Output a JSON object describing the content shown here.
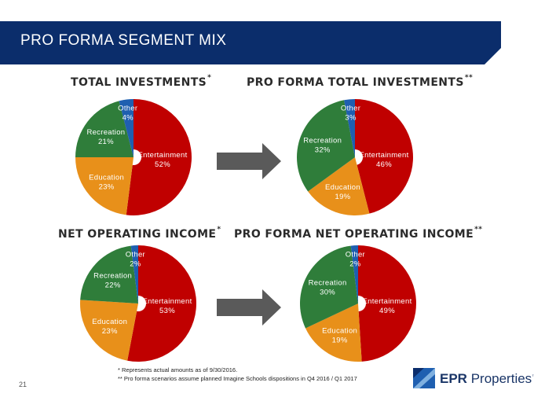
{
  "slide": {
    "title": "PRO FORMA SEGMENT MIX",
    "page_number": "21",
    "footnotes": [
      "*  Represents actual amounts as of 9/30/2016.",
      "** Pro forma scenarios assume planned Imagine Schools dispositions in Q4 2016 / Q1 2017"
    ],
    "logo": {
      "bold": "EPR",
      "rest": " Properties",
      "mark": "™"
    },
    "colors": {
      "banner": "#0b2d6b",
      "entertainment": "#c00000",
      "education": "#e8901a",
      "recreation": "#2f7d3a",
      "other": "#1f5fb0",
      "arrow": "#5a5a5a"
    }
  },
  "chart_data": [
    {
      "type": "pie",
      "title": "TOTAL INVESTMENTS",
      "title_mark": "*",
      "series": [
        {
          "name": "",
          "values": [
            52,
            23,
            21,
            4
          ]
        }
      ],
      "categories": [
        "Entertainment",
        "Education",
        "Recreation",
        "Other"
      ],
      "labels": [
        "52%",
        "23%",
        "21%",
        "4%"
      ]
    },
    {
      "type": "pie",
      "title": "PRO FORMA TOTAL INVESTMENTS",
      "title_mark": "**",
      "series": [
        {
          "name": "",
          "values": [
            46,
            19,
            32,
            3
          ]
        }
      ],
      "categories": [
        "Entertainment",
        "Education",
        "Recreation",
        "Other"
      ],
      "labels": [
        "46%",
        "19%",
        "32%",
        "3%"
      ]
    },
    {
      "type": "pie",
      "title": "NET OPERATING INCOME",
      "title_mark": "*",
      "series": [
        {
          "name": "",
          "values": [
            53,
            23,
            22,
            2
          ]
        }
      ],
      "categories": [
        "Entertainment",
        "Education",
        "Recreation",
        "Other"
      ],
      "labels": [
        "53%",
        "23%",
        "22%",
        "2%"
      ]
    },
    {
      "type": "pie",
      "title": "PRO FORMA NET OPERATING INCOME",
      "title_mark": "**",
      "series": [
        {
          "name": "",
          "values": [
            49,
            19,
            30,
            2
          ]
        }
      ],
      "categories": [
        "Entertainment",
        "Education",
        "Recreation",
        "Other"
      ],
      "labels": [
        "49%",
        "19%",
        "30%",
        "2%"
      ]
    }
  ]
}
